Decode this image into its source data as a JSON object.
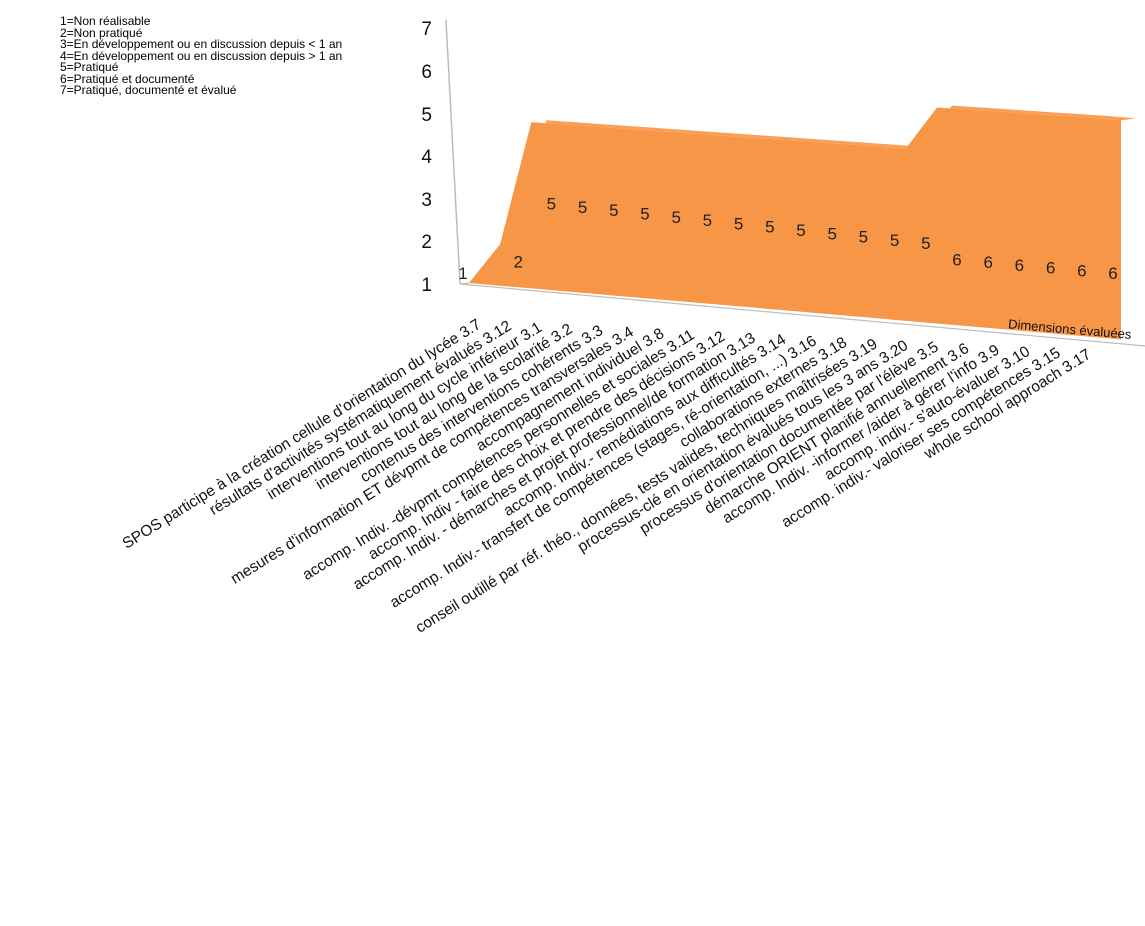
{
  "legend": [
    "1=Non réalisable",
    "2=Non pratiqué",
    "3=En développement ou en discussion depuis < 1 an",
    "4=En développement ou en discussion depuis > 1 an",
    "5=Pratiqué",
    "6=Pratiqué et documenté",
    "7=Pratiqué, documenté et évalué"
  ],
  "colors": {
    "series": "#f79646",
    "axis": "#bbbbbb"
  },
  "chart_data": {
    "type": "area",
    "title": "",
    "xlabel": "Dimensions évaluées",
    "ylabel": "",
    "ylim": [
      1,
      7
    ],
    "yticks": [
      1,
      2,
      3,
      4,
      5,
      6,
      7
    ],
    "categories": [
      "SPOS participe à la création cellule d'orientation du lycée 3.7",
      "résultats d'activités systématiquement évalués 3.12",
      "interventions tout au long du cycle inférieur 3.1",
      "interventions tout au long de la scolarité 3.2",
      "contenus des interventions cohérents 3.3",
      "mesures d'information ET dévpmt de compétences transversales 3.4",
      "accompagnement individuel 3.8",
      "accomp. Indiv. -dévpmt compétences personnelles et sociales 3.11",
      "accomp. Indiv - faire des choix et prendre des décisions 3.12",
      "accomp. Indiv. - démarches et projet professionnel/de formation 3.13",
      "accomp. Indiv.- remédiations aux difficultés 3.14",
      "accomp. Indiv.- transfert de compétences (stages, ré-orientation, ...) 3.16",
      "collaborations externes 3.18",
      "conseil outillé par réf. théo., données, tests valides, techniques maîtrisées 3.19",
      "processus-clé en orientation évalués tous les 3 ans 3.20",
      "processus d'orientation documentée par l'élève 3.5",
      "démarche ORIENT planifié annuellement 3.6",
      "accomp. Indiv. -informer /aider à gérer l'info 3.9",
      "accomp. indiv.- s'auto-évaluer 3.10",
      "accomp. indiv.- valoriser ses compétences 3.15",
      "whole school approach 3.17"
    ],
    "values": [
      1,
      2,
      5,
      5,
      5,
      5,
      5,
      5,
      5,
      5,
      5,
      5,
      5,
      5,
      5,
      6,
      6,
      6,
      6,
      6,
      6
    ],
    "data_labels": [
      "1",
      "2",
      "5",
      "5",
      "5",
      "5",
      "5",
      "5",
      "5",
      "5",
      "5",
      "5",
      "5",
      "5",
      "5",
      "6",
      "6",
      "6",
      "6",
      "6",
      "6"
    ],
    "grid": false,
    "legend_position": "top-left"
  }
}
